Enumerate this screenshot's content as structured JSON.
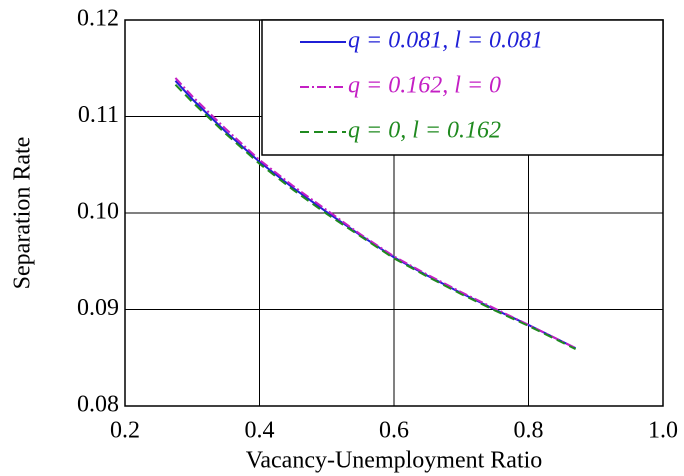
{
  "chart_data": {
    "type": "line",
    "x_label": "Vacancy-Unemployment Ratio",
    "y_label": "Separation Rate",
    "x": [
      0.275,
      0.3,
      0.35,
      0.4,
      0.45,
      0.5,
      0.55,
      0.6,
      0.65,
      0.7,
      0.75,
      0.8,
      0.87
    ],
    "series": [
      {
        "name": "q = 0.081, l = 0.081",
        "color": "#1f1fd6",
        "linestyle": "solid",
        "values": [
          0.1137,
          0.1118,
          0.1084,
          0.1053,
          0.1026,
          0.1001,
          0.0977,
          0.0954,
          0.0935,
          0.0917,
          0.09,
          0.0884,
          0.086
        ]
      },
      {
        "name": "q = 0.162, l = 0",
        "color": "#c41fc4",
        "linestyle": "dashdot",
        "values": [
          0.114,
          0.1121,
          0.1087,
          0.1055,
          0.1028,
          0.1003,
          0.0978,
          0.0955,
          0.0936,
          0.0918,
          0.0901,
          0.0884,
          0.086
        ]
      },
      {
        "name": "q = 0, l = 0.162",
        "color": "#1f8a1f",
        "linestyle": "dashed",
        "values": [
          0.1133,
          0.1115,
          0.1082,
          0.1051,
          0.1024,
          0.0999,
          0.0976,
          0.0953,
          0.0934,
          0.0916,
          0.0899,
          0.0883,
          0.0859
        ]
      }
    ],
    "xlim": [
      0.2,
      1.0
    ],
    "ylim": [
      0.08,
      0.12
    ],
    "xticks": [
      0.2,
      0.4,
      0.6,
      0.8,
      {
        "value": 1.0,
        "label": "1.0"
      }
    ],
    "yticks": [
      0.08,
      0.09,
      {
        "value": 0.1,
        "label": "0.10"
      },
      0.11,
      0.12
    ],
    "grid": true,
    "legend": "upper right"
  }
}
